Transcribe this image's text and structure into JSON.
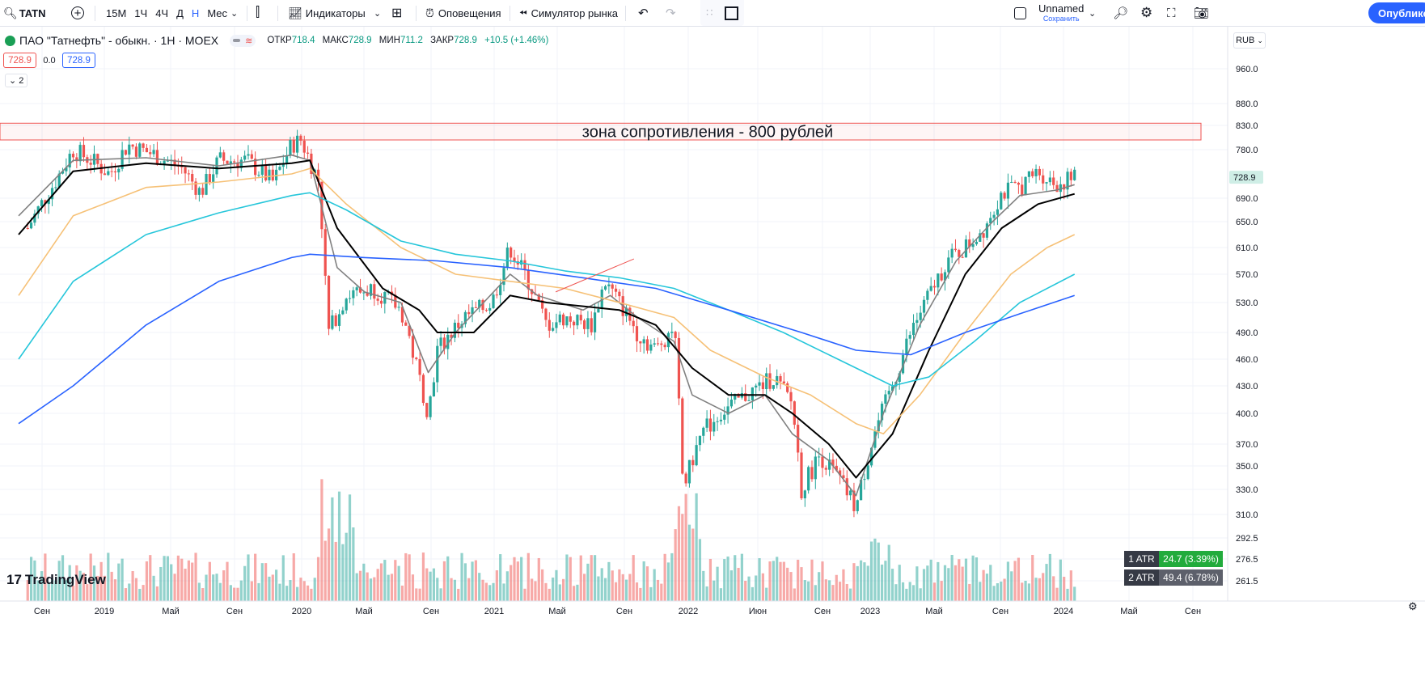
{
  "toolbar": {
    "symbol": "TATN",
    "timeframes": [
      "15М",
      "1Ч",
      "4Ч",
      "Д",
      "Н",
      "Мес"
    ],
    "active_timeframe": "Н",
    "indicators_label": "Индикаторы",
    "alerts_label": "Оповещения",
    "replay_label": "Симулятор рынка",
    "layout_name": "Unnamed",
    "save_label": "Сохранить",
    "publish_label": "Опубликовать"
  },
  "legend": {
    "title": "ПАО \"Татнефть\" - обыкн. · 1Н · MOEX",
    "open_label": "ОТКР",
    "open": "718.4",
    "high_label": "МАКС",
    "high": "728.9",
    "low_label": "МИН",
    "low": "711.2",
    "close_label": "ЗАКР",
    "close": "728.9",
    "change": "+10.5 (+1.46%)",
    "bid": "728.9",
    "spread": "0.0",
    "ask": "728.9",
    "collapsed_count": "2"
  },
  "currency": "RUB",
  "annotation": "зона сопротивления - 800 рублей",
  "atr": [
    {
      "name": "1 ATR",
      "value": "24.7 (3.39%)",
      "color": "#22ab3c"
    },
    {
      "name": "2 ATR",
      "value": "49.4 (6.78%)",
      "color": "#5d606b"
    }
  ],
  "watermark": "TradingView",
  "colors": {
    "up": "#26a69a",
    "down": "#ef5350",
    "accent": "#2962ff",
    "zone_border": "#ef5350"
  },
  "chart_data": {
    "type": "candlestick",
    "title": "ПАО \"Татнефть\" - обыкн. · 1Н · MOEX",
    "y_axis_ticks": [
      "960.0",
      "880.0",
      "830.0",
      "780.0",
      "728.9",
      "690.0",
      "650.0",
      "610.0",
      "570.0",
      "530.0",
      "490.0",
      "460.0",
      "430.0",
      "400.0",
      "370.0",
      "350.0",
      "330.0",
      "310.0",
      "292.5",
      "276.5",
      "261.5"
    ],
    "x_axis_ticks": [
      "Сен",
      "2019",
      "Май",
      "Сен",
      "2020",
      "Май",
      "Сен",
      "2021",
      "Май",
      "Сен",
      "2022",
      "Июн",
      "Сен",
      "2023",
      "Май",
      "Сен",
      "2024",
      "Май",
      "Сен"
    ],
    "last_price": 728.9,
    "resistance_zone": [
      800,
      835
    ],
    "price_path": [
      [
        2018.55,
        640
      ],
      [
        2018.7,
        720
      ],
      [
        2018.8,
        780
      ],
      [
        2018.9,
        760
      ],
      [
        2019.0,
        735
      ],
      [
        2019.1,
        790
      ],
      [
        2019.25,
        770
      ],
      [
        2019.4,
        745
      ],
      [
        2019.5,
        700
      ],
      [
        2019.6,
        760
      ],
      [
        2019.75,
        760
      ],
      [
        2019.9,
        720
      ],
      [
        2020.0,
        790
      ],
      [
        2020.05,
        800
      ],
      [
        2020.15,
        720
      ],
      [
        2020.2,
        490
      ],
      [
        2020.3,
        540
      ],
      [
        2020.45,
        550
      ],
      [
        2020.6,
        520
      ],
      [
        2020.7,
        440
      ],
      [
        2020.75,
        400
      ],
      [
        2020.8,
        470
      ],
      [
        2020.95,
        510
      ],
      [
        2021.1,
        530
      ],
      [
        2021.2,
        610
      ],
      [
        2021.3,
        560
      ],
      [
        2021.4,
        500
      ],
      [
        2021.5,
        510
      ],
      [
        2021.65,
        500
      ],
      [
        2021.72,
        560
      ],
      [
        2021.8,
        530
      ],
      [
        2021.9,
        490
      ],
      [
        2022.0,
        470
      ],
      [
        2022.1,
        500
      ],
      [
        2022.15,
        330
      ],
      [
        2022.25,
        380
      ],
      [
        2022.35,
        400
      ],
      [
        2022.5,
        420
      ],
      [
        2022.65,
        440
      ],
      [
        2022.75,
        410
      ],
      [
        2022.8,
        330
      ],
      [
        2022.9,
        360
      ],
      [
        2023.0,
        340
      ],
      [
        2023.1,
        315
      ],
      [
        2023.2,
        380
      ],
      [
        2023.3,
        430
      ],
      [
        2023.4,
        490
      ],
      [
        2023.5,
        540
      ],
      [
        2023.6,
        590
      ],
      [
        2023.7,
        610
      ],
      [
        2023.8,
        640
      ],
      [
        2023.9,
        700
      ],
      [
        2024.0,
        710
      ],
      [
        2024.1,
        740
      ],
      [
        2024.2,
        715
      ],
      [
        2024.3,
        728.9
      ]
    ],
    "series": [
      {
        "name": "ma_short",
        "color": "#808080",
        "values": [
          [
            2018.5,
            660
          ],
          [
            2018.8,
            760
          ],
          [
            2019.2,
            765
          ],
          [
            2019.6,
            750
          ],
          [
            2020.0,
            770
          ],
          [
            2020.1,
            760
          ],
          [
            2020.25,
            580
          ],
          [
            2020.4,
            545
          ],
          [
            2020.6,
            530
          ],
          [
            2020.75,
            445
          ],
          [
            2020.9,
            490
          ],
          [
            2021.2,
            570
          ],
          [
            2021.35,
            540
          ],
          [
            2021.6,
            520
          ],
          [
            2021.75,
            540
          ],
          [
            2021.9,
            510
          ],
          [
            2022.1,
            480
          ],
          [
            2022.2,
            420
          ],
          [
            2022.4,
            400
          ],
          [
            2022.6,
            420
          ],
          [
            2022.75,
            380
          ],
          [
            2022.95,
            355
          ],
          [
            2023.1,
            325
          ],
          [
            2023.25,
            400
          ],
          [
            2023.45,
            500
          ],
          [
            2023.65,
            590
          ],
          [
            2023.85,
            650
          ],
          [
            2024.0,
            695
          ],
          [
            2024.2,
            705
          ],
          [
            2024.3,
            715
          ]
        ]
      },
      {
        "name": "ma_mid",
        "color": "#000000",
        "values": [
          [
            2018.5,
            630
          ],
          [
            2018.8,
            740
          ],
          [
            2019.2,
            755
          ],
          [
            2019.6,
            745
          ],
          [
            2020.0,
            755
          ],
          [
            2020.1,
            760
          ],
          [
            2020.25,
            640
          ],
          [
            2020.5,
            550
          ],
          [
            2020.7,
            520
          ],
          [
            2020.8,
            490
          ],
          [
            2021.0,
            490
          ],
          [
            2021.2,
            540
          ],
          [
            2021.4,
            530
          ],
          [
            2021.6,
            525
          ],
          [
            2021.8,
            520
          ],
          [
            2022.0,
            500
          ],
          [
            2022.2,
            450
          ],
          [
            2022.4,
            420
          ],
          [
            2022.6,
            420
          ],
          [
            2022.75,
            400
          ],
          [
            2022.95,
            370
          ],
          [
            2023.1,
            340
          ],
          [
            2023.3,
            380
          ],
          [
            2023.5,
            470
          ],
          [
            2023.7,
            570
          ],
          [
            2023.9,
            640
          ],
          [
            2024.1,
            680
          ],
          [
            2024.3,
            698
          ]
        ]
      },
      {
        "name": "ma_50",
        "color": "#f6c177",
        "values": [
          [
            2018.5,
            540
          ],
          [
            2018.8,
            660
          ],
          [
            2019.2,
            710
          ],
          [
            2019.6,
            720
          ],
          [
            2020.0,
            735
          ],
          [
            2020.1,
            745
          ],
          [
            2020.3,
            680
          ],
          [
            2020.6,
            610
          ],
          [
            2020.9,
            570
          ],
          [
            2021.2,
            560
          ],
          [
            2021.5,
            550
          ],
          [
            2021.8,
            530
          ],
          [
            2022.1,
            510
          ],
          [
            2022.3,
            470
          ],
          [
            2022.6,
            440
          ],
          [
            2022.85,
            420
          ],
          [
            2023.1,
            390
          ],
          [
            2023.25,
            380
          ],
          [
            2023.45,
            420
          ],
          [
            2023.7,
            490
          ],
          [
            2023.95,
            570
          ],
          [
            2024.15,
            610
          ],
          [
            2024.3,
            630
          ]
        ]
      },
      {
        "name": "ma_100",
        "color": "#26c6da",
        "values": [
          [
            2018.5,
            460
          ],
          [
            2018.8,
            560
          ],
          [
            2019.2,
            630
          ],
          [
            2019.6,
            665
          ],
          [
            2020.0,
            695
          ],
          [
            2020.1,
            700
          ],
          [
            2020.3,
            670
          ],
          [
            2020.6,
            620
          ],
          [
            2020.9,
            600
          ],
          [
            2021.2,
            590
          ],
          [
            2021.5,
            575
          ],
          [
            2021.8,
            565
          ],
          [
            2022.1,
            550
          ],
          [
            2022.4,
            520
          ],
          [
            2022.7,
            490
          ],
          [
            2023.0,
            460
          ],
          [
            2023.3,
            430
          ],
          [
            2023.5,
            440
          ],
          [
            2023.75,
            480
          ],
          [
            2024.0,
            530
          ],
          [
            2024.3,
            570
          ]
        ]
      },
      {
        "name": "ma_200",
        "color": "#2962ff",
        "values": [
          [
            2018.5,
            390
          ],
          [
            2018.8,
            430
          ],
          [
            2019.2,
            500
          ],
          [
            2019.6,
            560
          ],
          [
            2020.0,
            595
          ],
          [
            2020.1,
            600
          ],
          [
            2020.4,
            595
          ],
          [
            2020.8,
            590
          ],
          [
            2021.2,
            580
          ],
          [
            2021.6,
            565
          ],
          [
            2022.0,
            550
          ],
          [
            2022.4,
            520
          ],
          [
            2022.8,
            490
          ],
          [
            2023.1,
            470
          ],
          [
            2023.4,
            465
          ],
          [
            2023.7,
            490
          ],
          [
            2024.0,
            515
          ],
          [
            2024.3,
            540
          ]
        ]
      }
    ]
  }
}
